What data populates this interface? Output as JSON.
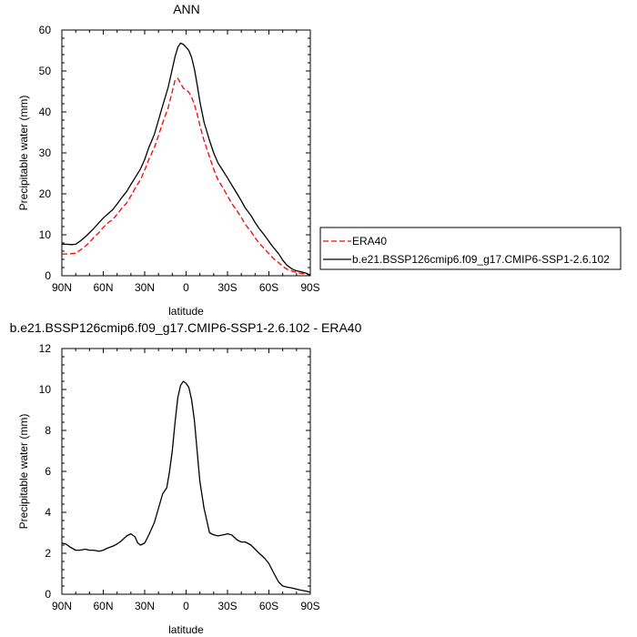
{
  "chart_data": [
    {
      "type": "line",
      "title": "ANN",
      "xlabel": "latitude",
      "ylabel": "Precipitable water (mm)",
      "xlim": [
        90,
        -90
      ],
      "ylim": [
        0,
        60
      ],
      "x_ticks": [
        90,
        60,
        30,
        0,
        -30,
        -60,
        -90
      ],
      "x_tick_labels": [
        "90N",
        "60N",
        "30N",
        "0",
        "30S",
        "60S",
        "90S"
      ],
      "y_ticks": [
        0,
        10,
        20,
        30,
        40,
        50,
        60
      ],
      "y_tick_labels": [
        "0",
        "10",
        "20",
        "30",
        "40",
        "50",
        "60"
      ],
      "legend_position": "right",
      "series": [
        {
          "name": "ERA40",
          "color": "#ff0000",
          "dash": "dashed",
          "x": [
            90,
            87,
            83,
            80,
            77,
            73,
            70,
            67,
            63,
            60,
            57,
            53,
            50,
            47,
            43,
            40,
            37,
            33,
            30,
            27,
            23,
            20,
            17,
            13,
            10,
            8,
            6,
            4,
            2,
            0,
            -2,
            -4,
            -6,
            -8,
            -10,
            -13,
            -17,
            -20,
            -23,
            -27,
            -30,
            -33,
            -37,
            -40,
            -43,
            -47,
            -50,
            -53,
            -57,
            -60,
            -63,
            -67,
            -70,
            -73,
            -77,
            -80,
            -83,
            -87,
            -90
          ],
          "y": [
            5.3,
            5.3,
            5.4,
            5.5,
            6.2,
            7.2,
            8.2,
            9.3,
            10.6,
            11.8,
            12.8,
            13.8,
            15.0,
            16.3,
            17.8,
            19.5,
            21.3,
            23.5,
            25.8,
            28.4,
            31.3,
            34.2,
            37.3,
            41.0,
            45.0,
            47.8,
            48.2,
            47.0,
            45.8,
            45.4,
            44.8,
            43.6,
            41.8,
            39.5,
            36.7,
            33.0,
            29.0,
            26.0,
            23.5,
            21.3,
            19.5,
            17.7,
            15.8,
            14.2,
            12.5,
            10.8,
            9.3,
            7.9,
            6.5,
            5.4,
            4.3,
            3.2,
            2.3,
            1.6,
            1.1,
            0.8,
            0.6,
            0.4,
            0.2
          ]
        },
        {
          "name": "b.e21.BSSP126cmip6.f09_g17.CMIP6-SSP1-2.6.102",
          "color": "#000000",
          "dash": "solid",
          "x": [
            90,
            87,
            83,
            80,
            77,
            73,
            70,
            67,
            63,
            60,
            57,
            53,
            50,
            47,
            43,
            40,
            37,
            33,
            30,
            27,
            23,
            20,
            17,
            13,
            10,
            8,
            6,
            4,
            2,
            0,
            -2,
            -4,
            -6,
            -8,
            -10,
            -13,
            -17,
            -20,
            -23,
            -27,
            -30,
            -33,
            -37,
            -40,
            -43,
            -47,
            -50,
            -53,
            -57,
            -60,
            -63,
            -67,
            -70,
            -73,
            -77,
            -80,
            -83,
            -87,
            -90
          ],
          "y": [
            7.7,
            7.7,
            7.6,
            7.7,
            8.4,
            9.5,
            10.5,
            11.5,
            13.0,
            14.1,
            15.0,
            16.2,
            17.5,
            18.9,
            20.6,
            22.3,
            23.9,
            26.1,
            28.4,
            31.3,
            34.5,
            38.0,
            41.5,
            46.0,
            50.5,
            53.5,
            55.8,
            56.8,
            56.5,
            55.8,
            55.0,
            53.3,
            50.5,
            46.7,
            42.5,
            37.5,
            33.0,
            30.0,
            27.6,
            25.5,
            23.9,
            22.2,
            20.0,
            18.3,
            16.5,
            14.7,
            13.0,
            11.5,
            9.8,
            8.4,
            7.0,
            5.4,
            3.8,
            2.6,
            1.6,
            1.2,
            1.0,
            0.6,
            0.2
          ]
        }
      ]
    },
    {
      "type": "line",
      "title": "b.e21.BSSP126cmip6.f09_g17.CMIP6-SSP1-2.6.102 - ERA40",
      "xlabel": "latitude",
      "ylabel": "Precipitable water (mm)",
      "xlim": [
        90,
        -90
      ],
      "ylim": [
        0,
        12
      ],
      "x_ticks": [
        90,
        60,
        30,
        0,
        -30,
        -60,
        -90
      ],
      "x_tick_labels": [
        "90N",
        "60N",
        "30N",
        "0",
        "30S",
        "60S",
        "90S"
      ],
      "y_ticks": [
        0,
        2,
        4,
        6,
        8,
        10,
        12
      ],
      "y_tick_labels": [
        "0",
        "2",
        "4",
        "6",
        "8",
        "10",
        "12"
      ],
      "series": [
        {
          "color": "#000000",
          "dash": "solid",
          "x": [
            90,
            87,
            84,
            80,
            77,
            73,
            70,
            67,
            63,
            60,
            57,
            53,
            50,
            47,
            43,
            40,
            37,
            35,
            33,
            30,
            27,
            23,
            20,
            17,
            14,
            12,
            10,
            8,
            6,
            4,
            2,
            0,
            -2,
            -4,
            -6,
            -8,
            -10,
            -13,
            -17,
            -20,
            -23,
            -27,
            -30,
            -33,
            -37,
            -40,
            -43,
            -47,
            -50,
            -53,
            -57,
            -60,
            -63,
            -67,
            -70,
            -73,
            -77,
            -80,
            -83,
            -87,
            -90
          ],
          "y": [
            2.5,
            2.45,
            2.3,
            2.15,
            2.15,
            2.2,
            2.15,
            2.15,
            2.1,
            2.15,
            2.25,
            2.35,
            2.45,
            2.6,
            2.85,
            2.95,
            2.8,
            2.5,
            2.4,
            2.5,
            2.9,
            3.5,
            4.2,
            4.9,
            5.2,
            6.0,
            7.0,
            8.4,
            9.6,
            10.2,
            10.4,
            10.3,
            10.1,
            9.5,
            8.5,
            7.0,
            5.5,
            4.2,
            3.0,
            2.9,
            2.85,
            2.9,
            2.95,
            2.9,
            2.65,
            2.55,
            2.55,
            2.4,
            2.2,
            2.0,
            1.75,
            1.5,
            1.1,
            0.6,
            0.4,
            0.35,
            0.3,
            0.25,
            0.2,
            0.15,
            0.1
          ]
        }
      ]
    }
  ]
}
